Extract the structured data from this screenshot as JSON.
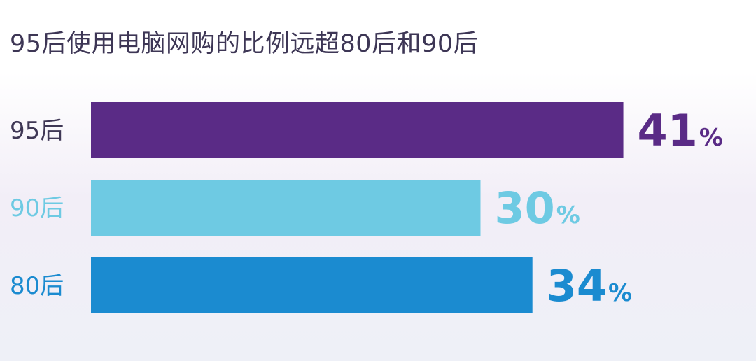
{
  "chart_data": {
    "type": "bar",
    "orientation": "horizontal",
    "title": "95后使用电脑网购的比例远超80后和90后",
    "categories": [
      "95后",
      "90后",
      "80后"
    ],
    "values": [
      41,
      30,
      34
    ],
    "unit": "%",
    "colors": [
      "#5a2b86",
      "#6ecae3",
      "#1b8bd0"
    ],
    "label_colors": [
      "#3f3755",
      "#6ecae3",
      "#1b8bd0"
    ],
    "value_label_colors": [
      "#5a2b86",
      "#6ecae3",
      "#1b8bd0"
    ],
    "grid": false,
    "legend": "none"
  }
}
